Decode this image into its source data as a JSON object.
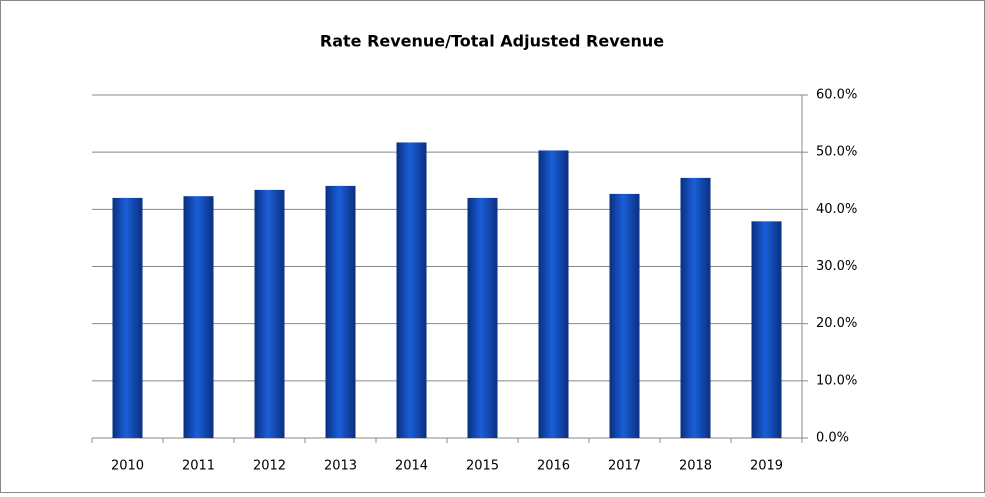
{
  "chart_data": {
    "type": "bar",
    "title": "Rate Revenue/Total Adjusted  Revenue",
    "categories": [
      "2010",
      "2011",
      "2012",
      "2013",
      "2014",
      "2015",
      "2016",
      "2017",
      "2018",
      "2019"
    ],
    "values": [
      42.0,
      42.3,
      43.4,
      44.1,
      51.7,
      42.0,
      50.3,
      42.7,
      45.5,
      37.9
    ],
    "color": "#1a5fd8",
    "ylim": [
      0,
      60
    ],
    "yticks": [
      {
        "value": 0,
        "label": "0.0%"
      },
      {
        "value": 10,
        "label": "10.0%"
      },
      {
        "value": 20,
        "label": "20.0%"
      },
      {
        "value": 30,
        "label": "30.0%"
      },
      {
        "value": 40,
        "label": "40.0%"
      },
      {
        "value": 50,
        "label": "50.0%"
      },
      {
        "value": 60,
        "label": "60.0%"
      }
    ],
    "grid": true,
    "y_axis_side": "right"
  }
}
